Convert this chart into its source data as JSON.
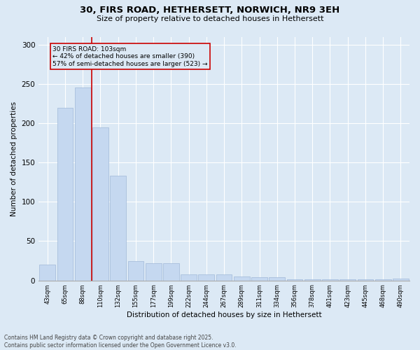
{
  "title_line1": "30, FIRS ROAD, HETHERSETT, NORWICH, NR9 3EH",
  "title_line2": "Size of property relative to detached houses in Hethersett",
  "xlabel": "Distribution of detached houses by size in Hethersett",
  "ylabel": "Number of detached properties",
  "categories": [
    "43sqm",
    "65sqm",
    "88sqm",
    "110sqm",
    "132sqm",
    "155sqm",
    "177sqm",
    "199sqm",
    "222sqm",
    "244sqm",
    "267sqm",
    "289sqm",
    "311sqm",
    "334sqm",
    "356sqm",
    "378sqm",
    "401sqm",
    "423sqm",
    "445sqm",
    "468sqm",
    "490sqm"
  ],
  "values": [
    20,
    220,
    245,
    195,
    133,
    25,
    22,
    22,
    8,
    8,
    8,
    5,
    4,
    4,
    1,
    1,
    1,
    1,
    1,
    1,
    2
  ],
  "bar_color": "#c5d8f0",
  "bar_edge_color": "#a0b8d8",
  "background_color": "#dce9f5",
  "grid_color": "#ffffff",
  "vline_color": "#cc0000",
  "annotation_text": "30 FIRS ROAD: 103sqm\n← 42% of detached houses are smaller (390)\n57% of semi-detached houses are larger (523) →",
  "annotation_box_color": "#cc0000",
  "ylim": [
    0,
    310
  ],
  "yticks": [
    0,
    50,
    100,
    150,
    200,
    250,
    300
  ],
  "footer_line1": "Contains HM Land Registry data © Crown copyright and database right 2025.",
  "footer_line2": "Contains public sector information licensed under the Open Government Licence v3.0."
}
